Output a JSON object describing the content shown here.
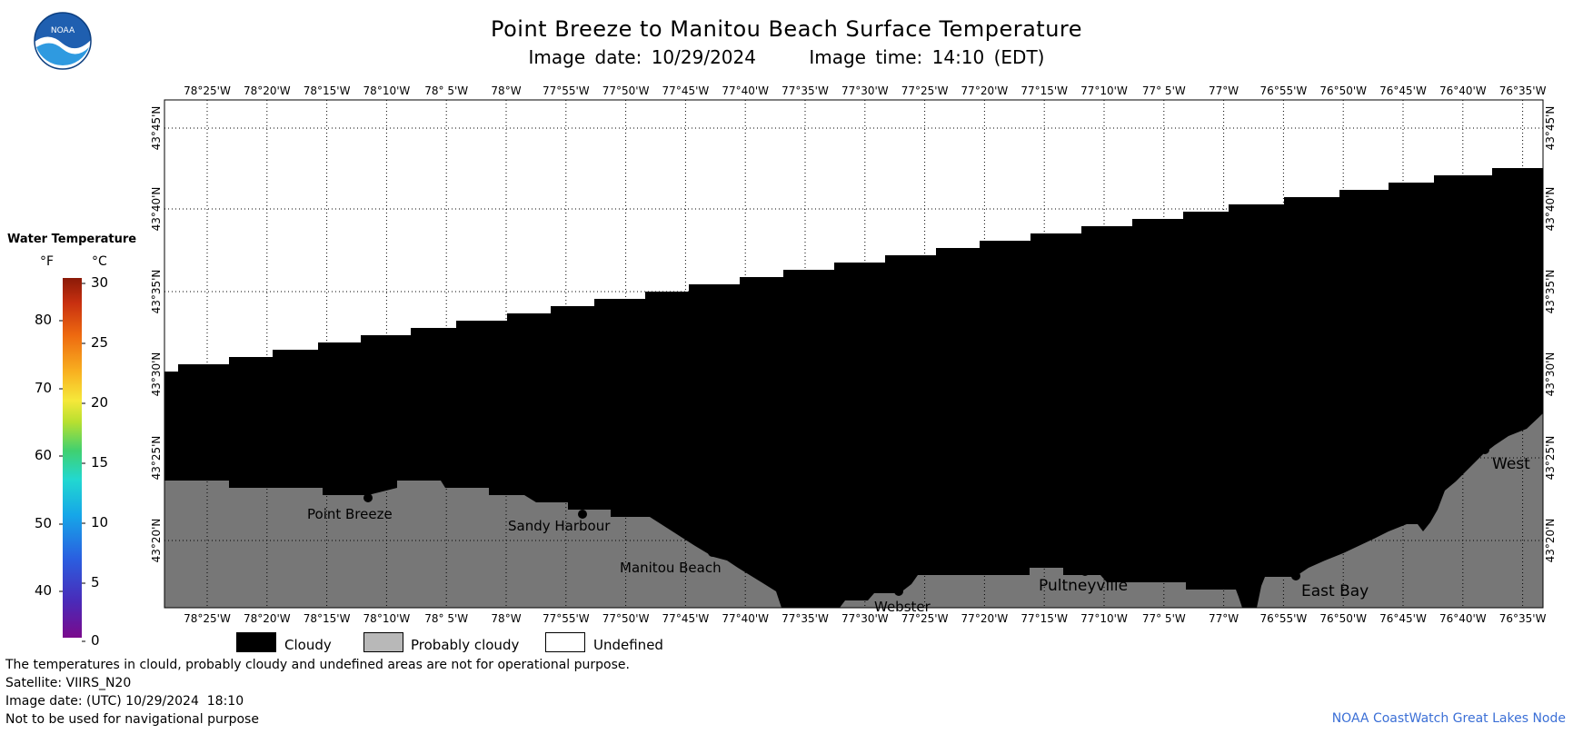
{
  "header": {
    "title": "Point Breeze to Manitou Beach Surface Temperature",
    "image_date": "Image date: 10/29/2024",
    "image_time": "Image time: 14:10 (EDT)"
  },
  "logo": {
    "text": "NOAA",
    "icon": "noaa-logo"
  },
  "colorbar": {
    "title": "Water Temperature",
    "unit_f": "°F",
    "unit_c": "°C",
    "f_ticks": [
      "80",
      "70",
      "60",
      "50",
      "40"
    ],
    "c_ticks": [
      "30",
      "25",
      "20",
      "15",
      "10",
      "5",
      "0"
    ]
  },
  "map": {
    "lon_labels": [
      "78°25'W",
      "78°20'W",
      "78°15'W",
      "78°10'W",
      "78° 5'W",
      "78°W",
      "77°55'W",
      "77°50'W",
      "77°45'W",
      "77°40'W",
      "77°35'W",
      "77°30'W",
      "77°25'W",
      "77°20'W",
      "77°15'W",
      "77°10'W",
      "77° 5'W",
      "77°W",
      "76°55'W",
      "76°50'W",
      "76°45'W",
      "76°40'W",
      "76°35'W"
    ],
    "lat_labels": [
      "43°45'N",
      "43°40'N",
      "43°35'N",
      "43°30'N",
      "43°25'N",
      "43°20'N"
    ],
    "places": [
      "Point Breeze",
      "Sandy Harbour",
      "Manitou Beach",
      "Webster",
      "Pultneyville",
      "East Bay",
      "West"
    ]
  },
  "key": {
    "cloudy": "Cloudy",
    "probably_cloudy": "Probably cloudy",
    "undefined": "Undefined"
  },
  "footer": {
    "note": "The temperatures in clould, probably cloudy and undefined areas are not for operational purpose.",
    "satellite": "Satellite: VIIRS_N20",
    "utc_date": "Image date: (UTC) 10/29/2024  18:10",
    "nav_note": "Not to be used for navigational purpose",
    "credit": "NOAA CoastWatch Great Lakes Node"
  },
  "colors": {
    "cloudy": "#000000",
    "probably_cloudy": "#777777",
    "undefined": "#ffffff"
  }
}
